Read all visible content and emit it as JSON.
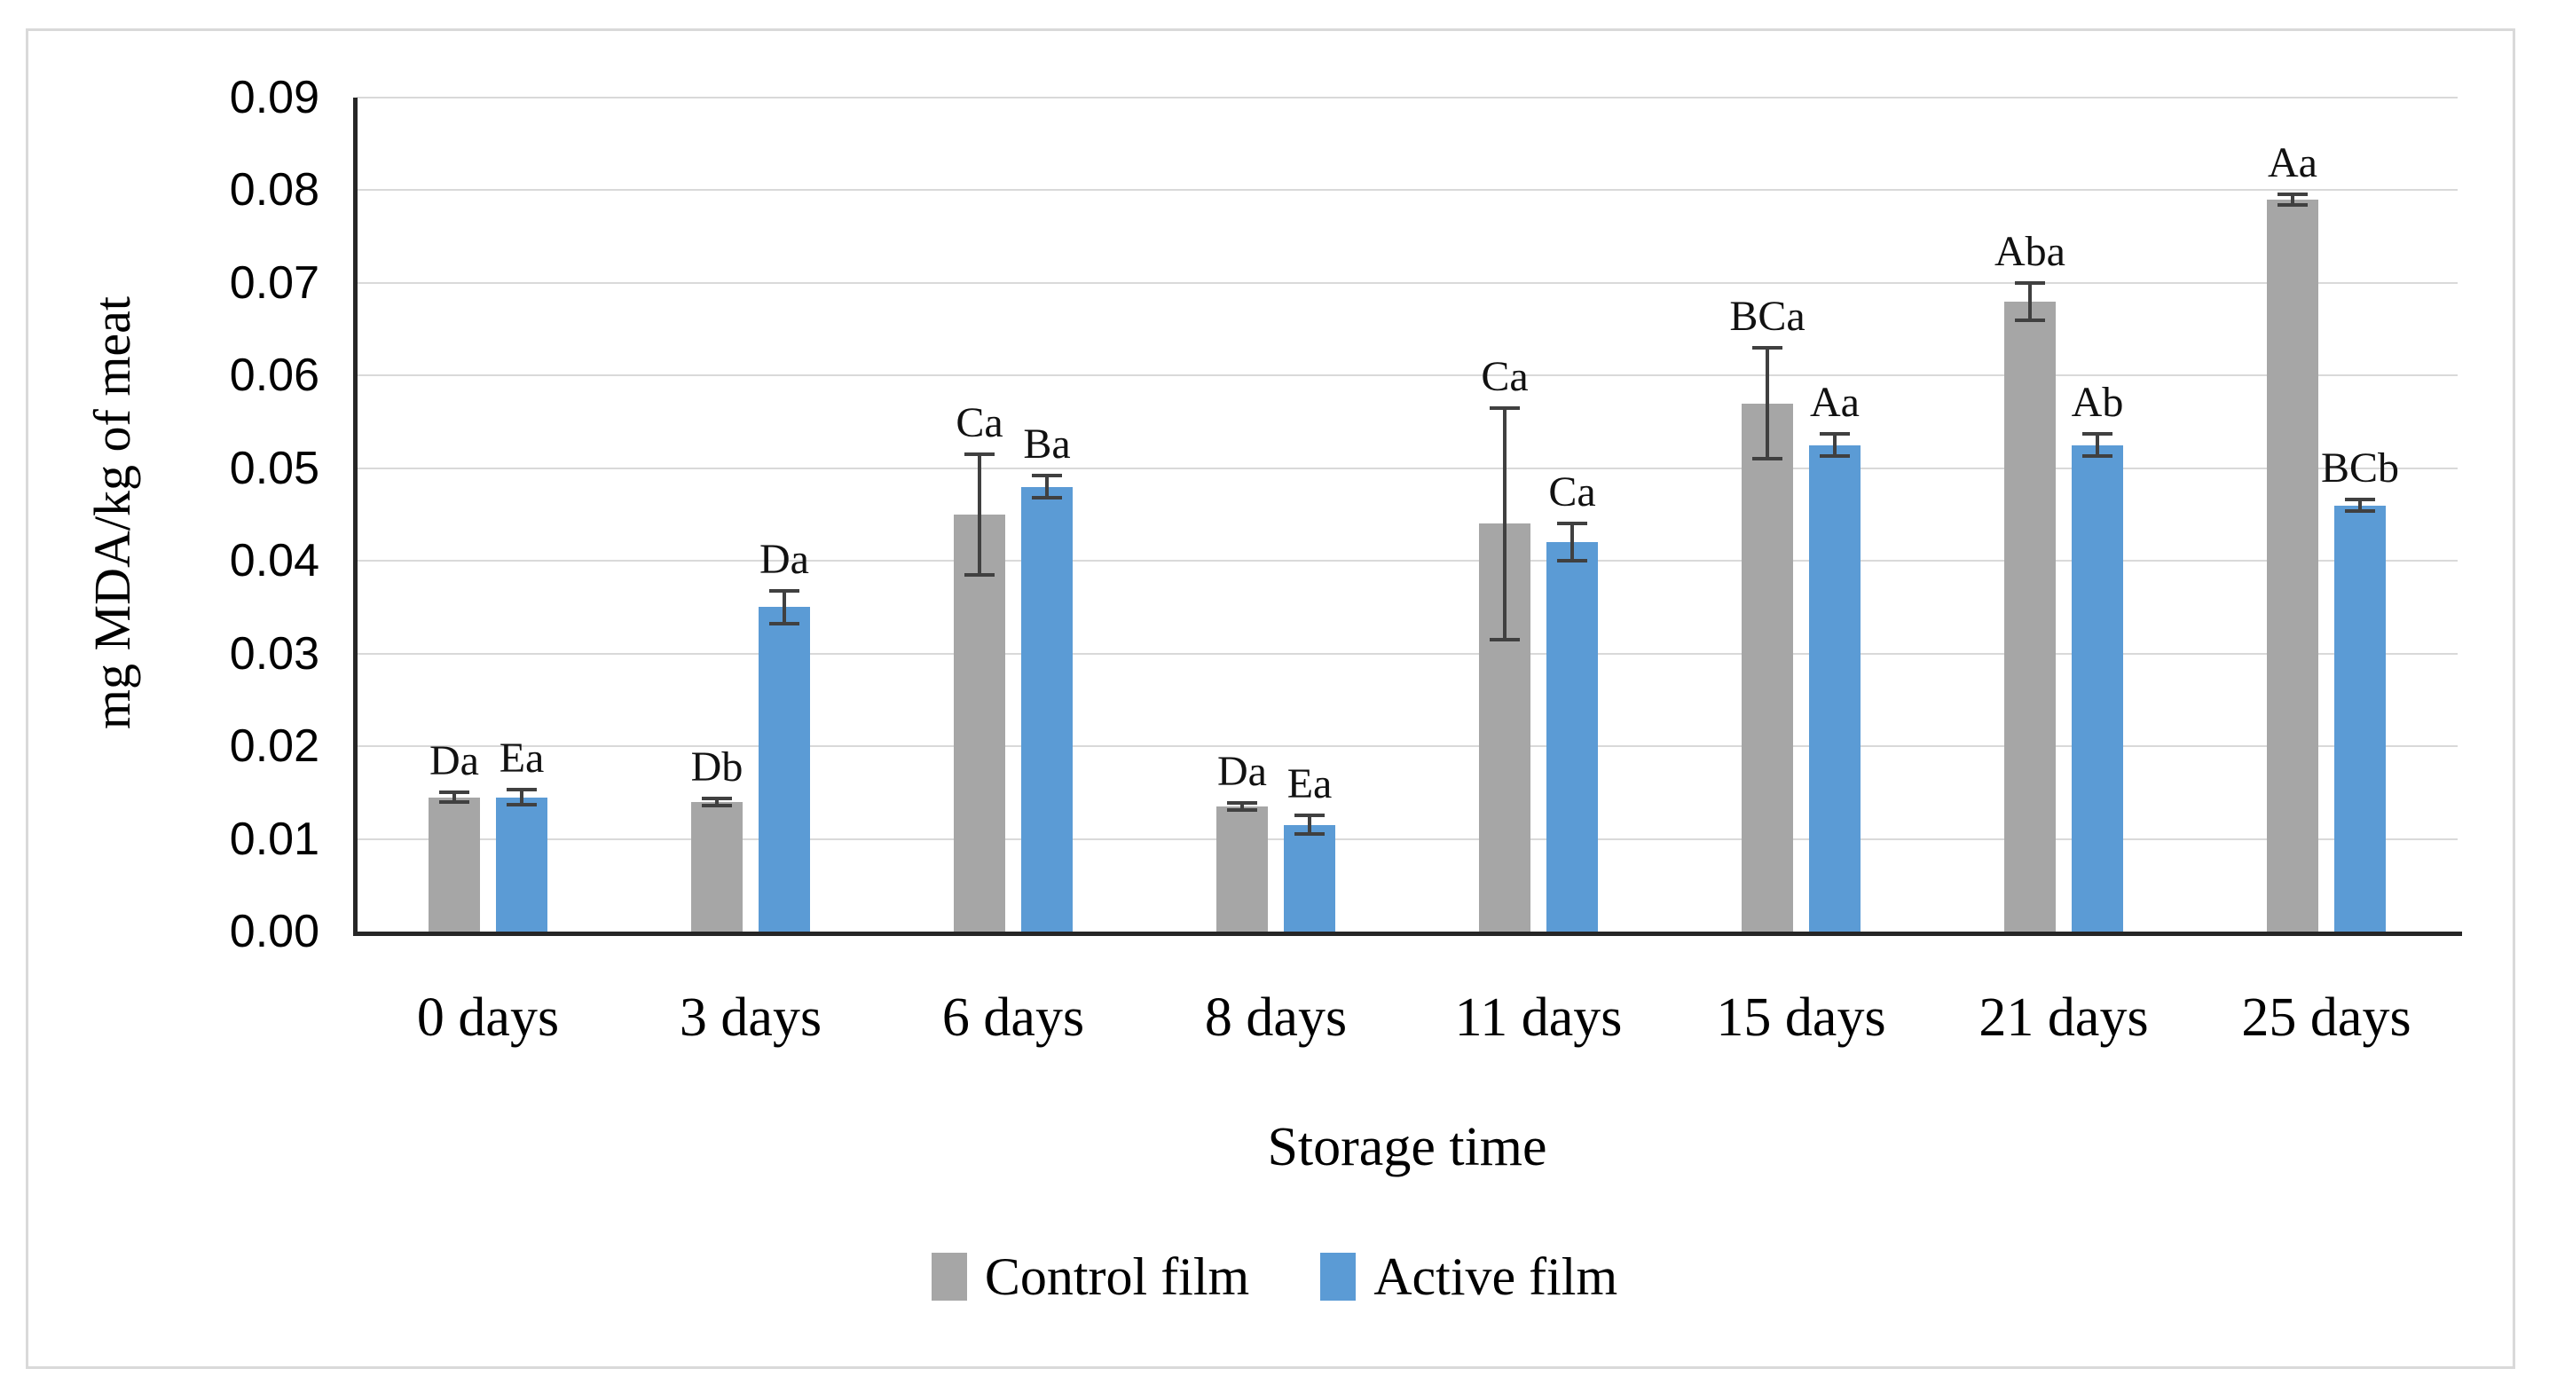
{
  "figure": {
    "background": "#ffffff",
    "border_color": "#d9d9d9"
  },
  "chart_data": {
    "type": "bar",
    "title": "",
    "ylabel": "mg MDA/kg of meat",
    "xlabel": "Storage time",
    "ylim": [
      0,
      0.09
    ],
    "ytick_step": 0.01,
    "yticks": [
      "0.00",
      "0.01",
      "0.02",
      "0.03",
      "0.04",
      "0.05",
      "0.06",
      "0.07",
      "0.08",
      "0.09"
    ],
    "grid": true,
    "gridline_color": "#d9d9d9",
    "axis_color": "#262626",
    "error_bar_color": "#404040",
    "legend_position": "bottom",
    "categories": [
      "0 days",
      "3 days",
      "6 days",
      "8 days",
      "11 days",
      "15 days",
      "21 days",
      "25 days"
    ],
    "series": [
      {
        "name": "Control film",
        "color": "#a6a6a6",
        "values": [
          0.0145,
          0.014,
          0.045,
          0.0135,
          0.044,
          0.057,
          0.068,
          0.079
        ],
        "errors": [
          0.0005,
          0.0004,
          0.0065,
          0.0004,
          0.0125,
          0.006,
          0.002,
          0.0006
        ],
        "annotations": [
          "Da",
          "Db",
          "Ca",
          "Da",
          "Ca",
          "BCa",
          "Aba",
          "Aa"
        ]
      },
      {
        "name": "Active film",
        "color": "#5b9bd5",
        "values": [
          0.0145,
          0.035,
          0.048,
          0.0115,
          0.042,
          0.0525,
          0.0525,
          0.046
        ],
        "errors": [
          0.0008,
          0.0018,
          0.0012,
          0.001,
          0.002,
          0.0012,
          0.0012,
          0.0006
        ],
        "annotations": [
          "Ea",
          "Da",
          "Ba",
          "Ea",
          "Ca",
          "Aa",
          "Ab",
          "BCb"
        ]
      }
    ]
  }
}
